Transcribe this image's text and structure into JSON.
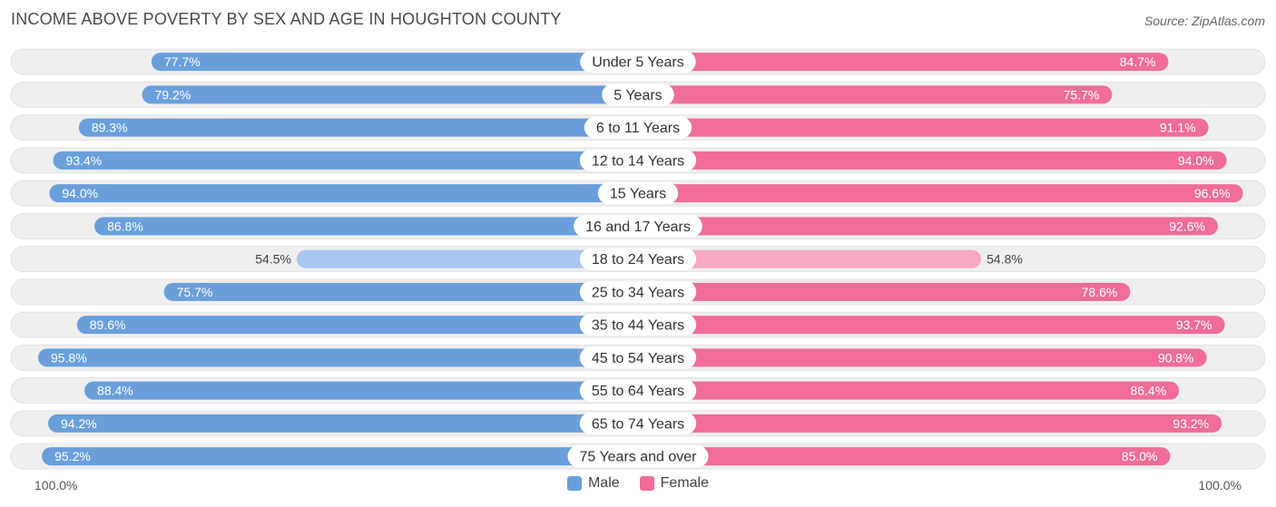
{
  "title": "INCOME ABOVE POVERTY BY SEX AND AGE IN HOUGHTON COUNTY",
  "source": "Source: ZipAtlas.com",
  "axis": {
    "left_label": "100.0%",
    "right_label": "100.0%"
  },
  "legend": {
    "male_label": "Male",
    "female_label": "Female"
  },
  "colors": {
    "male": "#6a9fdc",
    "male_light": "#a9c7ee",
    "female": "#f06d97",
    "female_light": "#f7a9c2",
    "track": "#efefef"
  },
  "chart_data": {
    "type": "bar",
    "orientation": "diverging-horizontal",
    "title": "INCOME ABOVE POVERTY BY SEX AND AGE IN HOUGHTON COUNTY",
    "xlim": [
      0,
      100
    ],
    "categories": [
      "Under 5 Years",
      "5 Years",
      "6 to 11 Years",
      "12 to 14 Years",
      "15 Years",
      "16 and 17 Years",
      "18 to 24 Years",
      "25 to 34 Years",
      "35 to 44 Years",
      "45 to 54 Years",
      "55 to 64 Years",
      "65 to 74 Years",
      "75 Years and over"
    ],
    "series": [
      {
        "name": "Male",
        "values": [
          77.7,
          79.2,
          89.3,
          93.4,
          94.0,
          86.8,
          54.5,
          75.7,
          89.6,
          95.8,
          88.4,
          94.2,
          95.2
        ],
        "labels": [
          "77.7%",
          "79.2%",
          "89.3%",
          "93.4%",
          "94.0%",
          "86.8%",
          "54.5%",
          "75.7%",
          "89.6%",
          "95.8%",
          "88.4%",
          "94.2%",
          "95.2%"
        ]
      },
      {
        "name": "Female",
        "values": [
          84.7,
          75.7,
          91.1,
          94.0,
          96.6,
          92.6,
          54.8,
          78.6,
          93.7,
          90.8,
          86.4,
          93.2,
          85.0
        ],
        "labels": [
          "84.7%",
          "75.7%",
          "91.1%",
          "94.0%",
          "96.6%",
          "92.6%",
          "54.8%",
          "78.6%",
          "93.7%",
          "90.8%",
          "86.4%",
          "93.2%",
          "85.0%"
        ]
      }
    ],
    "legend_position": "bottom-center"
  }
}
